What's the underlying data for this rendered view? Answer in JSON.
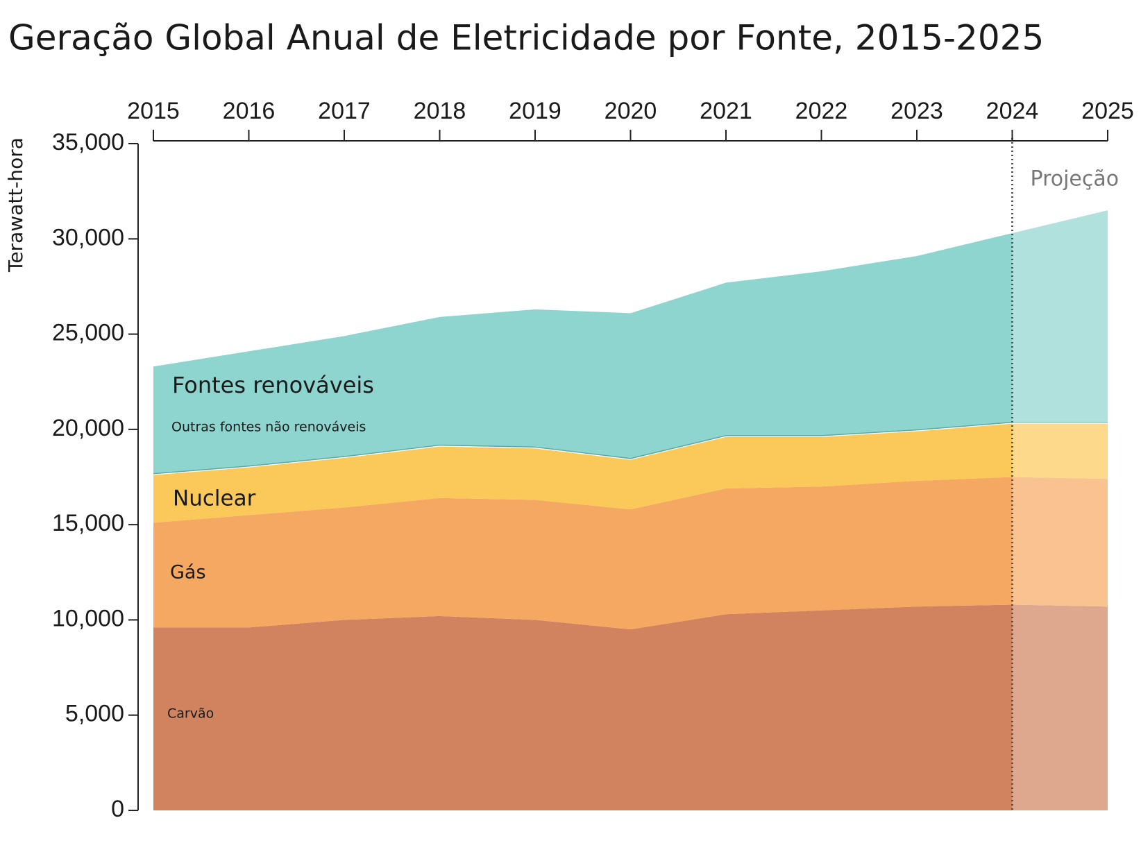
{
  "chart_data": {
    "type": "stacked-area",
    "title": "Geração Global Anual de Eletricidade por Fonte, 2015-2025",
    "y_label": "Terawatt-hora",
    "annotation": "Projeção",
    "projection_start": 2024,
    "x": [
      2015,
      2016,
      2017,
      2018,
      2019,
      2020,
      2021,
      2022,
      2023,
      2024,
      2025
    ],
    "xlim": [
      2015,
      2025
    ],
    "xticks": [
      2015,
      2016,
      2017,
      2018,
      2019,
      2020,
      2021,
      2022,
      2023,
      2024,
      2025
    ],
    "ylim": [
      0,
      35000
    ],
    "yticks": [
      0,
      {
        "value": 5000,
        "label": "5,000"
      },
      {
        "value": 10000,
        "label": "10,000"
      },
      {
        "value": 15000,
        "label": "15,000"
      },
      {
        "value": 20000,
        "label": "20,000"
      },
      {
        "value": 25000,
        "label": "25,000"
      },
      {
        "value": 30000,
        "label": "30,000"
      },
      {
        "value": 35000,
        "label": "35,000"
      }
    ],
    "series": [
      {
        "name": "Carvão",
        "color": "#d0835e",
        "values": [
          9600,
          9600,
          10000,
          10200,
          10000,
          9500,
          10300,
          10500,
          10700,
          10800,
          10700
        ]
      },
      {
        "name": "Gás",
        "color": "#f5a862",
        "values": [
          5500,
          5900,
          5900,
          6200,
          6300,
          6300,
          6600,
          6500,
          6600,
          6700,
          6700
        ]
      },
      {
        "name": "Nuclear",
        "color": "#fbc95a",
        "values": [
          2500,
          2500,
          2600,
          2700,
          2700,
          2600,
          2700,
          2600,
          2600,
          2800,
          2900
        ]
      },
      {
        "name": "Outras fontes não renováveis",
        "color": "#5aa8a0",
        "values": [
          100,
          100,
          100,
          100,
          100,
          100,
          100,
          100,
          100,
          100,
          100
        ]
      },
      {
        "name": "Fontes renováveis",
        "color": "#8ed5cf",
        "values": [
          5600,
          6000,
          6300,
          6700,
          7200,
          7600,
          8000,
          8600,
          9100,
          9900,
          11100
        ]
      }
    ]
  }
}
